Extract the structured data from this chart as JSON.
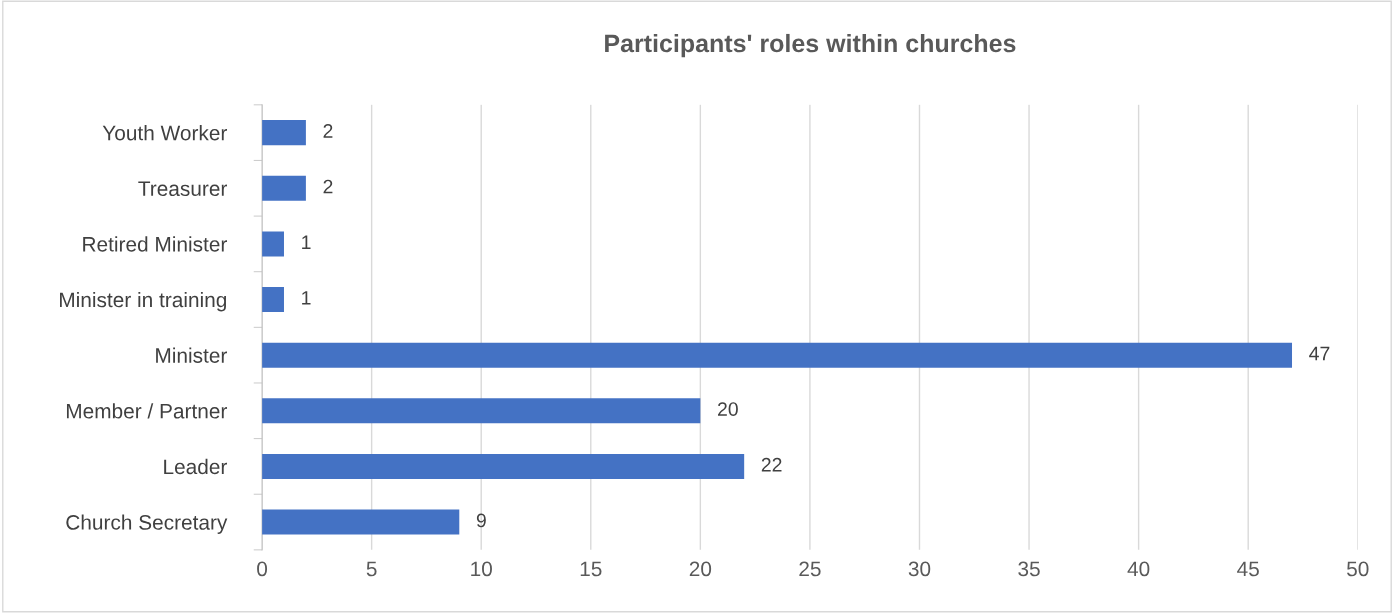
{
  "chart_data": {
    "type": "bar",
    "orientation": "horizontal",
    "title": "Participants' roles within churches",
    "categories": [
      "Youth Worker",
      "Treasurer",
      "Retired Minister",
      "Minister in training",
      "Minister",
      "Member / Partner",
      "Leader",
      "Church Secretary"
    ],
    "values": [
      2,
      2,
      1,
      1,
      47,
      20,
      22,
      9
    ],
    "color": "#4472c4",
    "xlim": [
      0,
      50
    ],
    "xticks": [
      0,
      5,
      10,
      15,
      20,
      25,
      30,
      35,
      40,
      45,
      50
    ],
    "grid": "x",
    "data_labels": true
  }
}
